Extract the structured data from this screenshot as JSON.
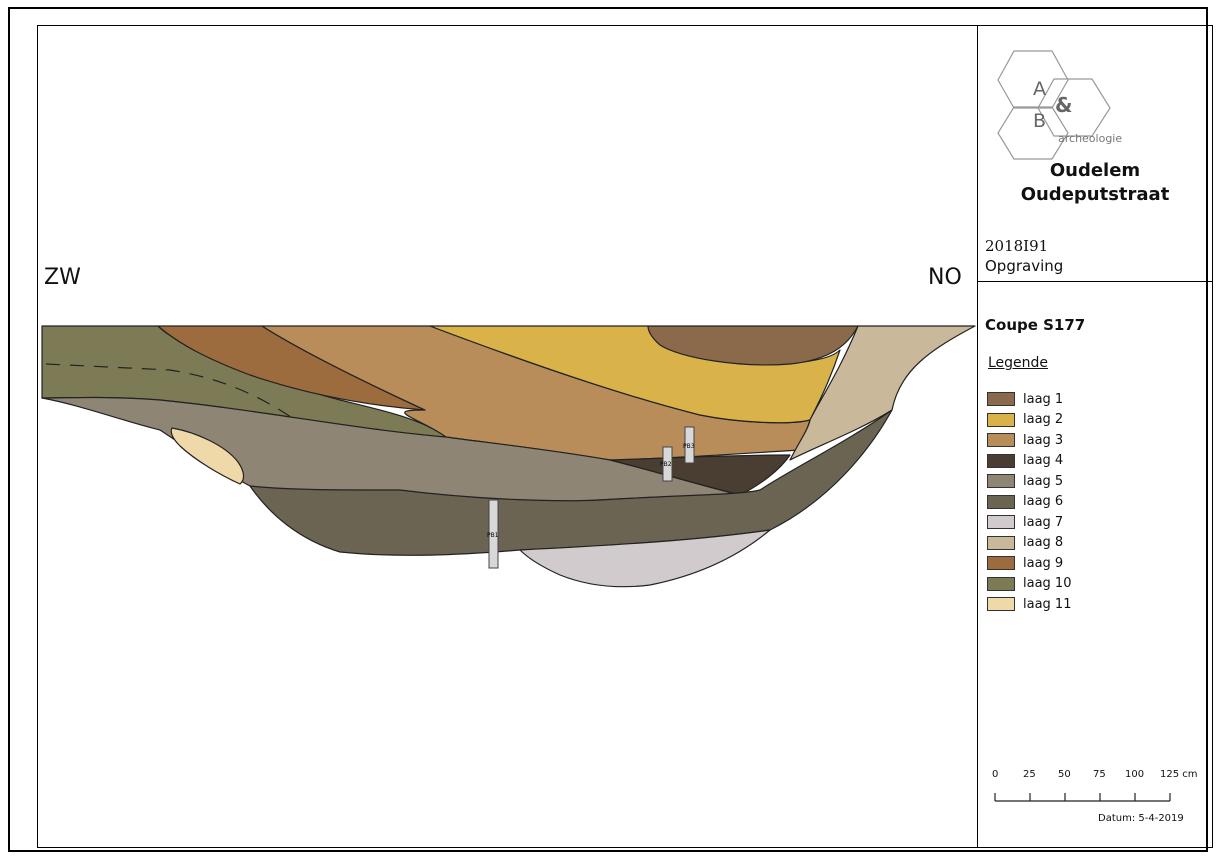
{
  "directions": {
    "left": "ZW",
    "right": "NO"
  },
  "logo": {
    "letter_a": "A",
    "letter_b": "B",
    "amp": "&",
    "sub": "archeologie"
  },
  "title_block": {
    "site_line1": "Oudelem",
    "site_line2": "Oudeputstraat",
    "code": "2018I91",
    "type": "Opgraving",
    "coupe": "Coupe S177",
    "legend_title": "Legende"
  },
  "legend": [
    {
      "label": "laag 1",
      "color": "#8a6a4a"
    },
    {
      "label": "laag 2",
      "color": "#d9b24a"
    },
    {
      "label": "laag 3",
      "color": "#b88d5a"
    },
    {
      "label": "laag 4",
      "color": "#4a3e33"
    },
    {
      "label": "laag 5",
      "color": "#8f8574"
    },
    {
      "label": "laag 6",
      "color": "#6b6452"
    },
    {
      "label": "laag 7",
      "color": "#d2cbcd"
    },
    {
      "label": "laag 8",
      "color": "#c9b89a"
    },
    {
      "label": "laag 9",
      "color": "#9c6b3e"
    },
    {
      "label": "laag 10",
      "color": "#7d7b55"
    },
    {
      "label": "laag 11",
      "color": "#f0d9a8"
    }
  ],
  "probes": [
    {
      "label": "PB1"
    },
    {
      "label": "PB2"
    },
    {
      "label": "PB3"
    }
  ],
  "scale": {
    "ticks": [
      "0",
      "25",
      "50",
      "75",
      "100",
      "125 cm"
    ]
  },
  "datum": "Datum: 5-4-2019"
}
